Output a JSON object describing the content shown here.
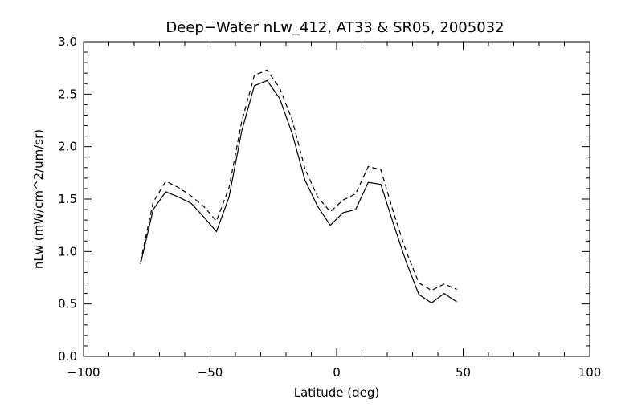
{
  "chart_data": {
    "type": "line",
    "title": "Deep−Water nLw_412, AT33 & SR05, 2005032",
    "xlabel": "Latitude (deg)",
    "ylabel": "nLw (mW/cm^2/um/sr)",
    "xlim": [
      -100,
      100
    ],
    "ylim": [
      0.0,
      3.0
    ],
    "x_ticks": [
      "−100",
      "−50",
      "0",
      "50",
      "100"
    ],
    "y_ticks": [
      "0.0",
      "0.5",
      "1.0",
      "1.5",
      "2.0",
      "2.5",
      "3.0"
    ],
    "x_tick_values": [
      -100,
      -50,
      0,
      50,
      100
    ],
    "y_tick_values": [
      0.0,
      0.5,
      1.0,
      1.5,
      2.0,
      2.5,
      3.0
    ],
    "grid": false,
    "legend": "none",
    "series": [
      {
        "style": "solid",
        "color": "#000000",
        "x": [
          -77.5,
          -72.5,
          -67.5,
          -62.5,
          -57.5,
          -52.5,
          -47.5,
          -42.5,
          -37.5,
          -32.5,
          -27.5,
          -22.5,
          -17.5,
          -12.5,
          -7.5,
          -2.5,
          2.5,
          7.5,
          12.5,
          17.5,
          22.5,
          27.5,
          32.5,
          37.5,
          42.5,
          47.5
        ],
        "values": [
          0.88,
          1.4,
          1.57,
          1.52,
          1.46,
          1.33,
          1.19,
          1.52,
          2.15,
          2.58,
          2.63,
          2.46,
          2.12,
          1.68,
          1.43,
          1.25,
          1.37,
          1.4,
          1.66,
          1.64,
          1.26,
          0.9,
          0.59,
          0.51,
          0.6,
          0.52
        ]
      },
      {
        "style": "dashed",
        "color": "#000000",
        "x": [
          -77.5,
          -72.5,
          -67.5,
          -62.5,
          -57.5,
          -52.5,
          -47.5,
          -42.5,
          -37.5,
          -32.5,
          -27.5,
          -22.5,
          -17.5,
          -12.5,
          -7.5,
          -2.5,
          2.5,
          7.5,
          12.5,
          17.5,
          22.5,
          27.5,
          32.5,
          37.5,
          42.5,
          47.5
        ],
        "values": [
          0.9,
          1.47,
          1.67,
          1.61,
          1.53,
          1.43,
          1.29,
          1.61,
          2.24,
          2.68,
          2.73,
          2.56,
          2.25,
          1.79,
          1.52,
          1.38,
          1.49,
          1.55,
          1.81,
          1.78,
          1.37,
          1.0,
          0.7,
          0.63,
          0.69,
          0.64
        ]
      }
    ]
  }
}
